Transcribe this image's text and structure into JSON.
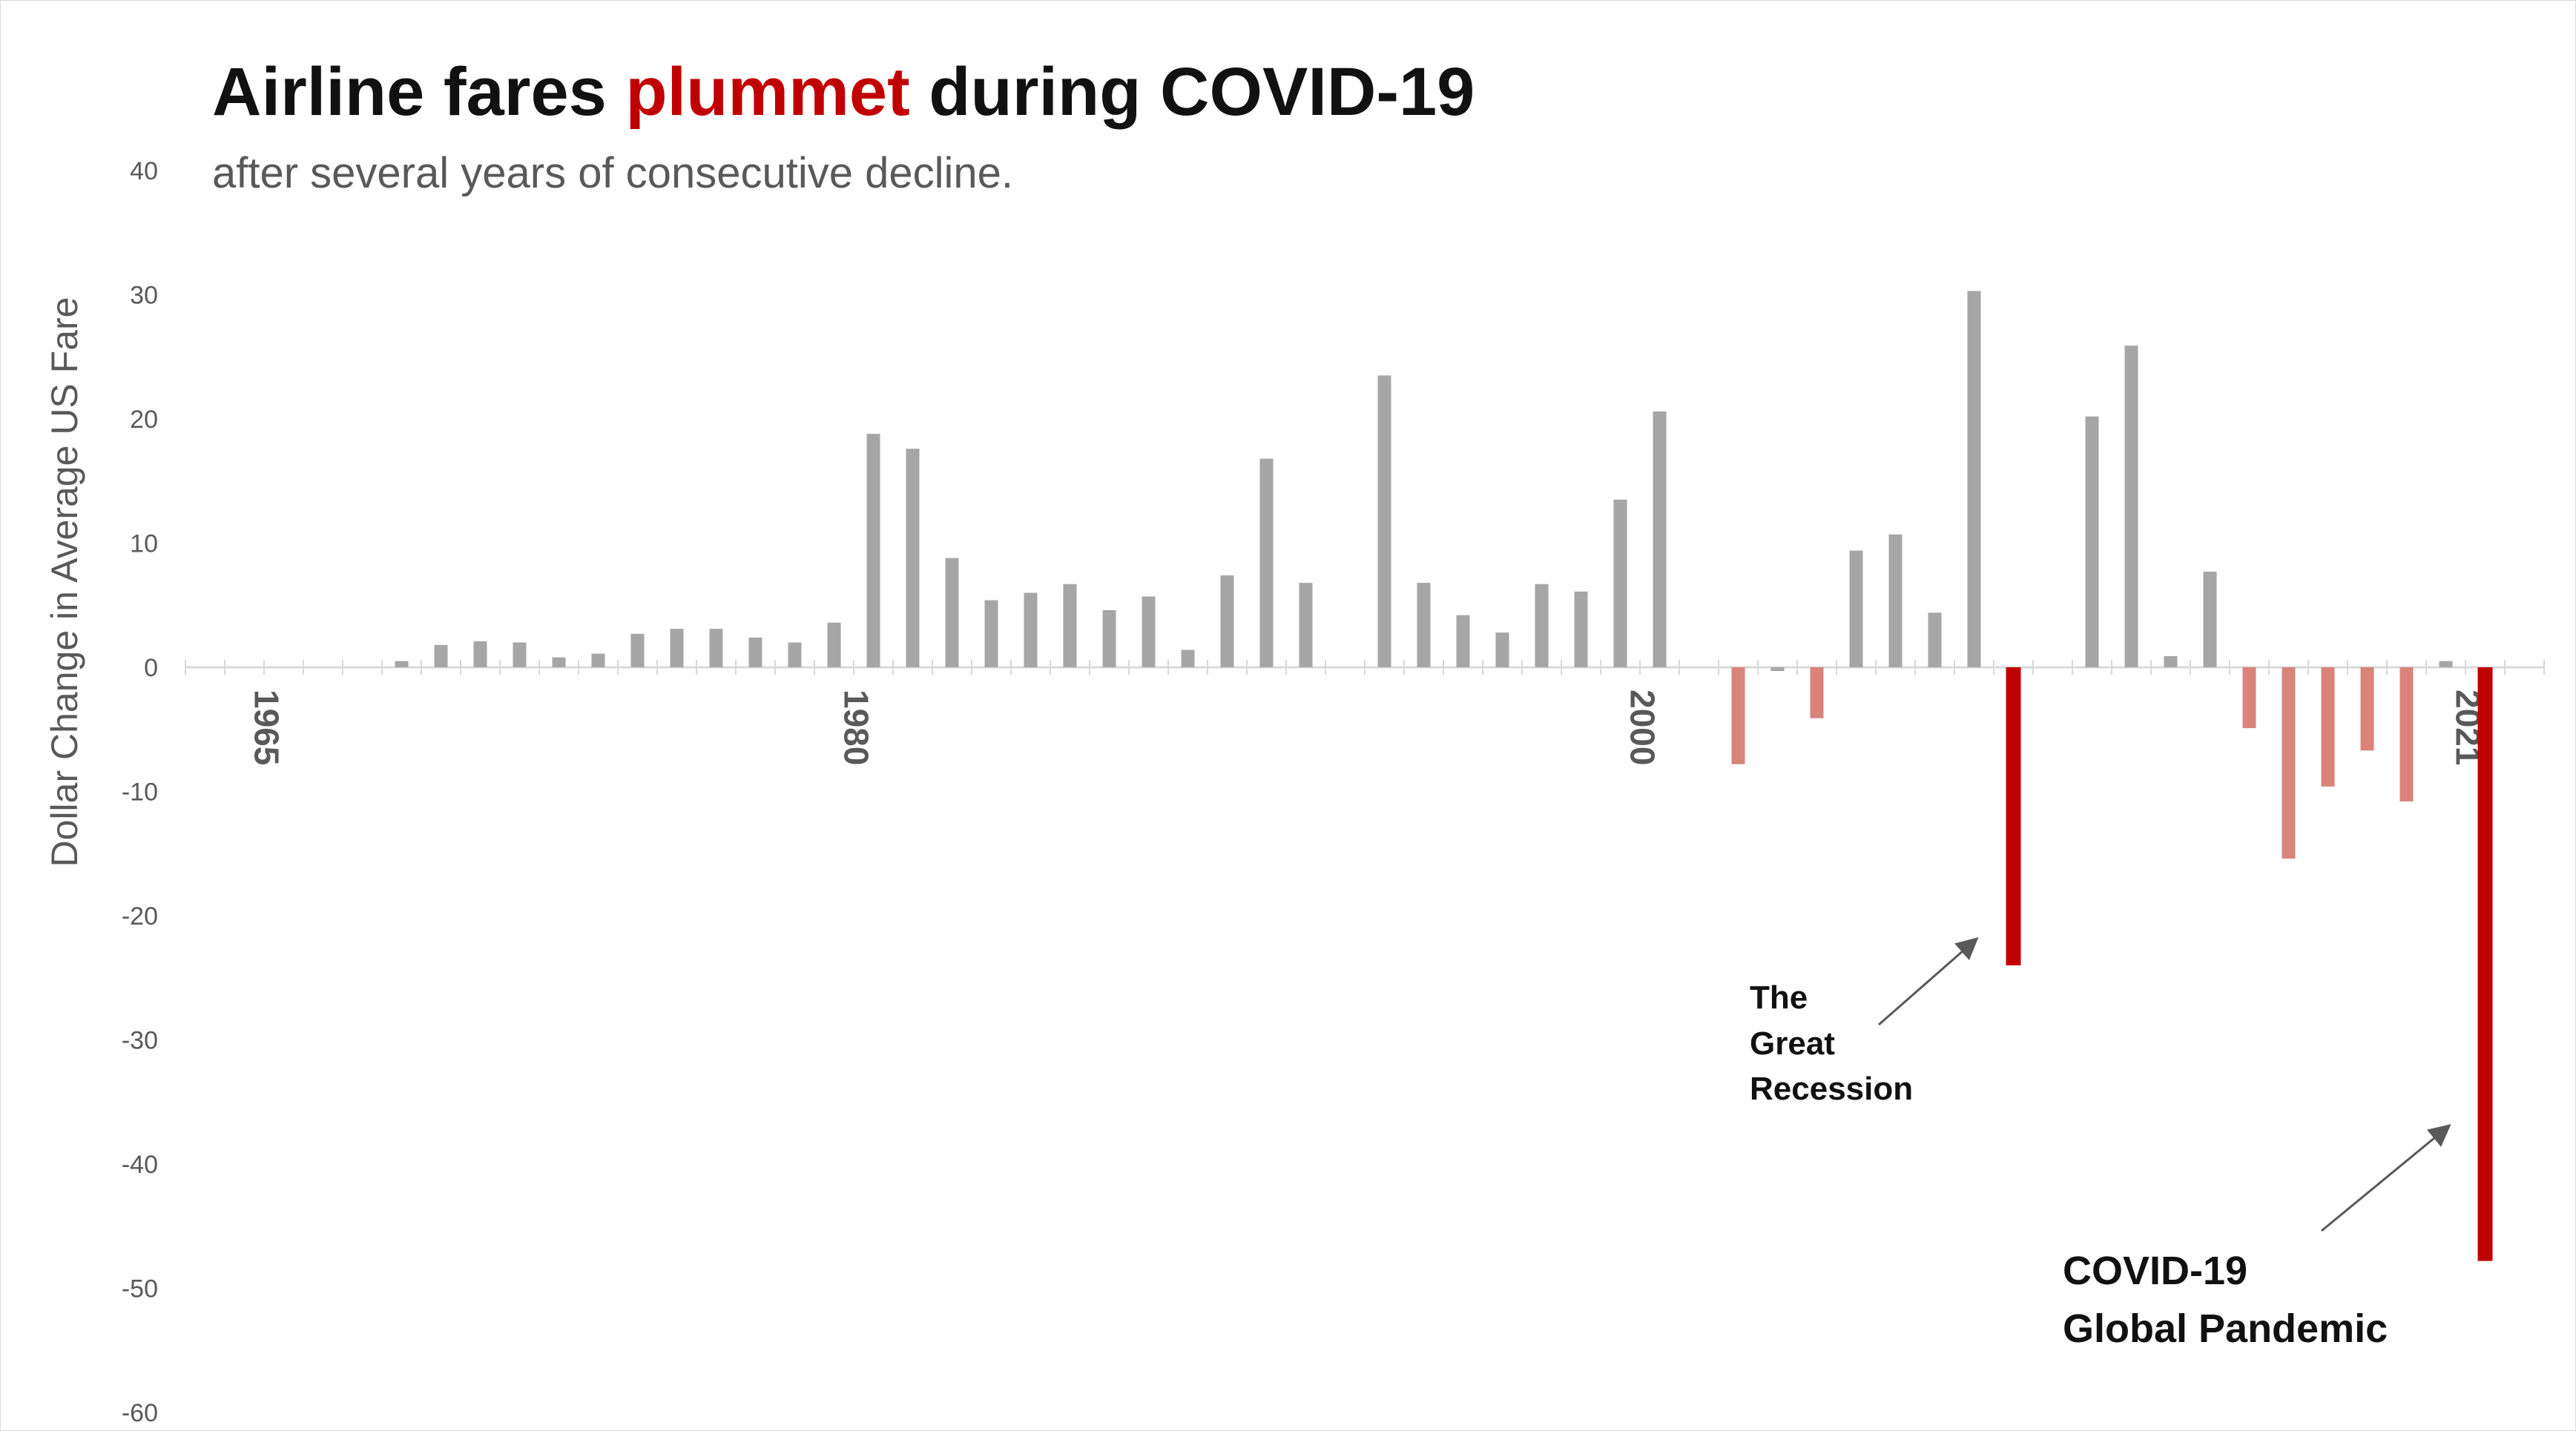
{
  "title": {
    "part1": "Airline fares ",
    "highlight": "plummet",
    "part2": " during COVID-19"
  },
  "subtitle": "after several years of consecutive decline.",
  "colors": {
    "positive_bar": "#a6a6a6",
    "negative_bar": "#d9837b",
    "highlight_bar": "#c00000",
    "axis": "#d9d9d9",
    "text": "#595959",
    "title_highlight": "#c00000"
  },
  "chart_data": {
    "type": "bar",
    "title": "Airline fares plummet during COVID-19",
    "subtitle": "after several years of consecutive decline.",
    "ylabel": "Dollar Change in Average US Fare",
    "xlabel": "",
    "ylim": [
      -60,
      40
    ],
    "yticks": [
      40,
      30,
      20,
      10,
      0,
      -10,
      -20,
      -30,
      -40,
      -50,
      -60
    ],
    "xtick_labels": [
      {
        "year": 1965,
        "label": "1965"
      },
      {
        "year": 1980,
        "label": "1980"
      },
      {
        "year": 2000,
        "label": "2000"
      },
      {
        "year": 2021,
        "label": "2021"
      }
    ],
    "grid": false,
    "bars": [
      {
        "year": 1969,
        "value": 0.5,
        "style": "positive"
      },
      {
        "year": 1970,
        "value": 1.8,
        "style": "positive"
      },
      {
        "year": 1971,
        "value": 2.1,
        "style": "positive"
      },
      {
        "year": 1972,
        "value": 2.0,
        "style": "positive"
      },
      {
        "year": 1973,
        "value": 0.8,
        "style": "positive"
      },
      {
        "year": 1974,
        "value": 1.1,
        "style": "positive"
      },
      {
        "year": 1975,
        "value": 2.7,
        "style": "positive"
      },
      {
        "year": 1976,
        "value": 3.1,
        "style": "positive"
      },
      {
        "year": 1977,
        "value": 3.1,
        "style": "positive"
      },
      {
        "year": 1978,
        "value": 2.4,
        "style": "positive"
      },
      {
        "year": 1979,
        "value": 2.0,
        "style": "positive"
      },
      {
        "year": 1980,
        "value": 3.6,
        "style": "positive"
      },
      {
        "year": 1981,
        "value": 18.8,
        "style": "positive"
      },
      {
        "year": 1982,
        "value": 17.6,
        "style": "positive"
      },
      {
        "year": 1983,
        "value": 8.8,
        "style": "positive"
      },
      {
        "year": 1984,
        "value": 5.4,
        "style": "positive"
      },
      {
        "year": 1985,
        "value": 6.0,
        "style": "positive"
      },
      {
        "year": 1986,
        "value": 6.7,
        "style": "positive"
      },
      {
        "year": 1987,
        "value": 4.6,
        "style": "positive"
      },
      {
        "year": 1988,
        "value": 5.7,
        "style": "positive"
      },
      {
        "year": 1989,
        "value": 1.4,
        "style": "positive"
      },
      {
        "year": 1990,
        "value": 7.4,
        "style": "positive"
      },
      {
        "year": 1991,
        "value": 16.8,
        "style": "positive"
      },
      {
        "year": 1992,
        "value": 6.8,
        "style": "positive"
      },
      {
        "year": 1994,
        "value": 23.5,
        "style": "positive"
      },
      {
        "year": 1995,
        "value": 6.8,
        "style": "positive"
      },
      {
        "year": 1996,
        "value": 4.2,
        "style": "positive"
      },
      {
        "year": 1997,
        "value": 2.8,
        "style": "positive"
      },
      {
        "year": 1998,
        "value": 6.7,
        "style": "positive"
      },
      {
        "year": 1999,
        "value": 6.1,
        "style": "positive"
      },
      {
        "year": 2000,
        "value": 13.5,
        "style": "positive"
      },
      {
        "year": 2001,
        "value": 20.6,
        "style": "positive"
      },
      {
        "year": 2003,
        "value": -7.8,
        "style": "negative"
      },
      {
        "year": 2004,
        "value": -0.3,
        "style": "positive"
      },
      {
        "year": 2005,
        "value": -4.1,
        "style": "negative"
      },
      {
        "year": 2006,
        "value": 9.4,
        "style": "positive"
      },
      {
        "year": 2007,
        "value": 10.7,
        "style": "positive"
      },
      {
        "year": 2008,
        "value": 4.4,
        "style": "positive"
      },
      {
        "year": 2009,
        "value": 30.3,
        "style": "positive"
      },
      {
        "year": 2010,
        "value": -24.0,
        "style": "highlight"
      },
      {
        "year": 2012,
        "value": 20.2,
        "style": "positive"
      },
      {
        "year": 2013,
        "value": 25.9,
        "style": "positive"
      },
      {
        "year": 2014,
        "value": 0.9,
        "style": "positive"
      },
      {
        "year": 2015,
        "value": 7.7,
        "style": "positive"
      },
      {
        "year": 2016,
        "value": -4.9,
        "style": "negative"
      },
      {
        "year": 2017,
        "value": -15.4,
        "style": "negative"
      },
      {
        "year": 2018,
        "value": -9.6,
        "style": "negative"
      },
      {
        "year": 2019,
        "value": -6.7,
        "style": "negative"
      },
      {
        "year": 2020,
        "value": -10.8,
        "style": "negative"
      },
      {
        "year": 2021,
        "value": 0.5,
        "style": "positive"
      },
      {
        "year": 2022,
        "value": -47.8,
        "style": "highlight"
      }
    ],
    "annotations": [
      {
        "lines": [
          "The",
          "Great",
          "Recession"
        ],
        "points_to": 2010
      },
      {
        "lines": [
          "COVID-19",
          "Global Pandemic"
        ],
        "points_to": 2022
      }
    ]
  }
}
